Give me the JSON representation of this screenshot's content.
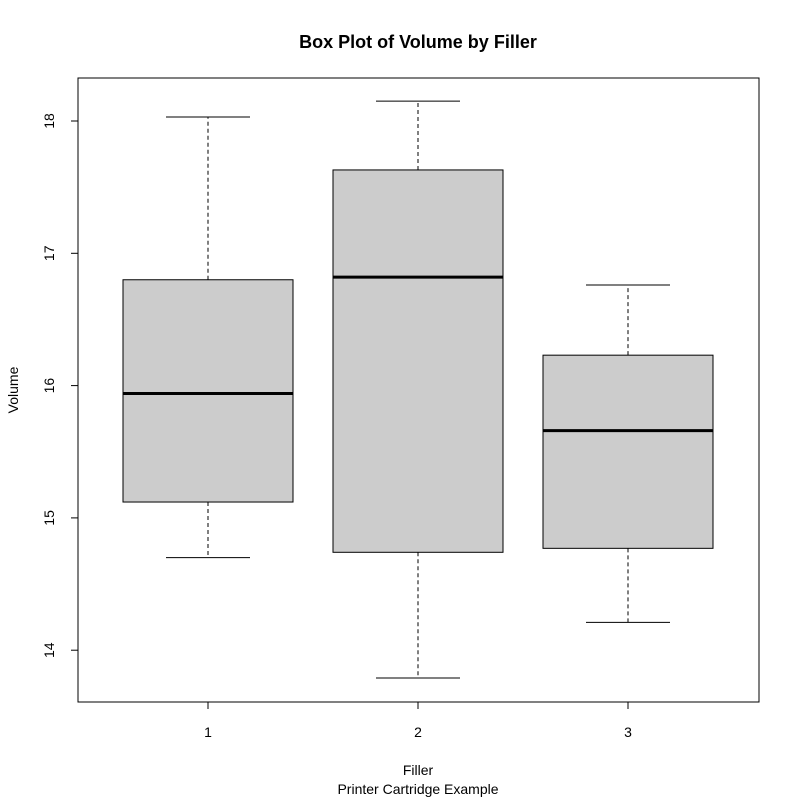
{
  "chart_data": {
    "type": "boxplot",
    "title": "Box Plot of Volume by Filler",
    "xlabel": "Filler",
    "subtitle": "Printer Cartridge Example",
    "ylabel": "Volume",
    "categories": [
      "1",
      "2",
      "3"
    ],
    "boxes": [
      {
        "category": "1",
        "min": 14.7,
        "q1": 15.12,
        "median": 15.94,
        "q3": 16.8,
        "max": 18.03
      },
      {
        "category": "2",
        "min": 13.79,
        "q1": 14.74,
        "median": 16.82,
        "q3": 17.63,
        "max": 18.15
      },
      {
        "category": "3",
        "min": 14.21,
        "q1": 14.77,
        "median": 15.66,
        "q3": 16.23,
        "max": 16.76
      }
    ],
    "yticks": [
      14,
      15,
      16,
      17,
      18
    ],
    "ylim": [
      13.65,
      18.4
    ],
    "box_color": "#cccccc",
    "grid": false,
    "legend": "none"
  }
}
